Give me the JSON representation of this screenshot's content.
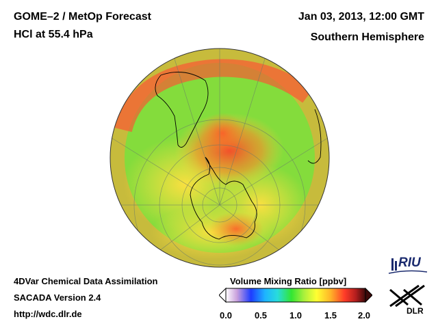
{
  "header": {
    "title_line1": "GOME–2 / MetOp Forecast",
    "title_line2": "HCl at 55.4 hPa",
    "date": "Jan 03, 2013, 12:00 GMT",
    "hemisphere": "Southern Hemisphere"
  },
  "footer": {
    "line1": "4DVar Chemical Data Assimilation",
    "line2": "SACADA Version 2.4",
    "line3": "http://wdc.dlr.de"
  },
  "colorbar": {
    "title": "Volume Mixing Ratio [ppbv]",
    "ticks": [
      "0.0",
      "0.5",
      "1.0",
      "1.5",
      "2.0"
    ],
    "range": [
      0.0,
      2.0
    ],
    "colors": [
      "#ffffff",
      "#c9a0dc",
      "#1e3cff",
      "#1eb4ff",
      "#28dcdc",
      "#32e632",
      "#aaf03c",
      "#ffff32",
      "#ffb428",
      "#ff3c28",
      "#b41e1e",
      "#3c0a0a"
    ]
  },
  "logos": {
    "riu": "RIU",
    "dlr": "DLR"
  },
  "map": {
    "projection": "orthographic-south-polar",
    "background_color": "#7ddc3c"
  }
}
